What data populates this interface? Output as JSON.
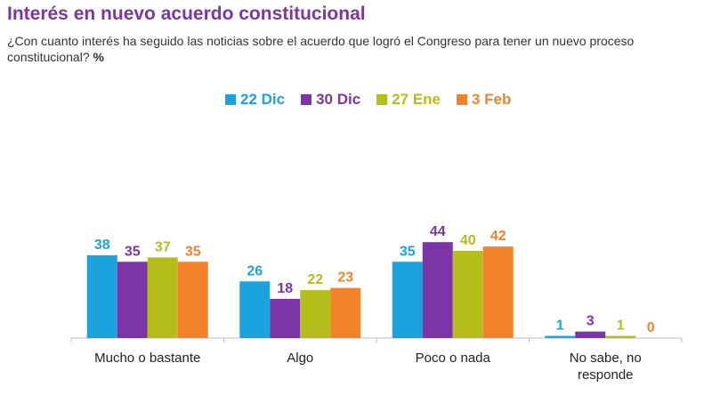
{
  "header": {
    "title": "Interés en nuevo acuerdo constitucional",
    "question": "¿Con cuanto interés ha seguido las noticias sobre el acuerdo que logró el Congreso para tener un nuevo proceso constitucional?",
    "unit": "%"
  },
  "chart_data": {
    "type": "bar",
    "title": "Interés en nuevo acuerdo constitucional",
    "categories": [
      "Mucho o bastante",
      "Algo",
      "Poco o nada",
      "No sabe, no responde"
    ],
    "series": [
      {
        "name": "22 Dic",
        "color": "#1aa3dc",
        "values": [
          38,
          26,
          35,
          1
        ]
      },
      {
        "name": "30 Dic",
        "color": "#7b35a6",
        "values": [
          35,
          18,
          44,
          3
        ]
      },
      {
        "name": "27 Ene",
        "color": "#b5bd1b",
        "values": [
          37,
          22,
          40,
          1
        ]
      },
      {
        "name": "3 Feb",
        "color": "#f2832a",
        "values": [
          35,
          23,
          42,
          0
        ]
      }
    ],
    "legend_position": "top-center",
    "grid": false
  }
}
